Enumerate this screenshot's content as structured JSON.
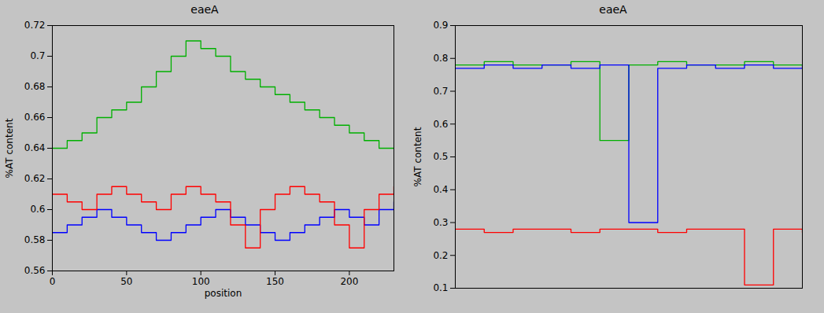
{
  "chart_data": [
    {
      "type": "line",
      "title": "eaeA",
      "x_label": "position",
      "y_label": "%AT content",
      "x": [
        0,
        10,
        20,
        30,
        40,
        50,
        60,
        70,
        80,
        90,
        100,
        110,
        120,
        130,
        140,
        150,
        160,
        170,
        180,
        190,
        200,
        210,
        220,
        230
      ],
      "series": [
        {
          "color": "#00b000",
          "values": [
            0.64,
            0.645,
            0.65,
            0.66,
            0.665,
            0.67,
            0.68,
            0.69,
            0.7,
            0.71,
            0.705,
            0.7,
            0.69,
            0.685,
            0.68,
            0.675,
            0.67,
            0.665,
            0.66,
            0.655,
            0.65,
            0.645,
            0.64,
            0.64
          ]
        },
        {
          "color": "#0000ff",
          "values": [
            0.585,
            0.59,
            0.595,
            0.6,
            0.595,
            0.59,
            0.585,
            0.58,
            0.585,
            0.59,
            0.595,
            0.6,
            0.595,
            0.59,
            0.585,
            0.58,
            0.585,
            0.59,
            0.595,
            0.6,
            0.595,
            0.59,
            0.6,
            0.605
          ]
        },
        {
          "color": "#ff0000",
          "values": [
            0.61,
            0.605,
            0.6,
            0.61,
            0.615,
            0.61,
            0.605,
            0.6,
            0.61,
            0.615,
            0.61,
            0.605,
            0.59,
            0.575,
            0.6,
            0.61,
            0.615,
            0.61,
            0.605,
            0.59,
            0.575,
            0.6,
            0.61,
            0.615
          ]
        }
      ],
      "xlim": [
        0,
        230
      ],
      "xticks": [
        0,
        50,
        100,
        150,
        200
      ],
      "ylim": [
        0.56,
        0.72
      ],
      "yticks": [
        0.56,
        0.58,
        0.6,
        0.62,
        0.64,
        0.66,
        0.68,
        0.7,
        0.72
      ],
      "grid": false
    },
    {
      "type": "line",
      "title": "eaeA",
      "y_label": "%AT content",
      "x": [
        0,
        10,
        20,
        30,
        40,
        50,
        60,
        70,
        80,
        90,
        100,
        110,
        120
      ],
      "series": [
        {
          "color": "#00b000",
          "values": [
            0.78,
            0.79,
            0.78,
            0.78,
            0.79,
            0.55,
            0.78,
            0.79,
            0.78,
            0.78,
            0.79,
            0.78,
            0.78
          ]
        },
        {
          "color": "#0000ff",
          "values": [
            0.77,
            0.78,
            0.77,
            0.78,
            0.77,
            0.78,
            0.3,
            0.77,
            0.78,
            0.77,
            0.78,
            0.77,
            0.78
          ]
        },
        {
          "color": "#ff0000",
          "values": [
            0.28,
            0.27,
            0.28,
            0.28,
            0.27,
            0.28,
            0.28,
            0.27,
            0.28,
            0.28,
            0.11,
            0.28,
            0.27
          ]
        }
      ],
      "xlim": [
        0,
        120
      ],
      "ylim": [
        0.1,
        0.9
      ],
      "yticks": [
        0.1,
        0.2,
        0.3,
        0.4,
        0.5,
        0.6,
        0.7,
        0.8,
        0.9
      ],
      "grid": false,
      "tick_labels": "y"
    }
  ]
}
